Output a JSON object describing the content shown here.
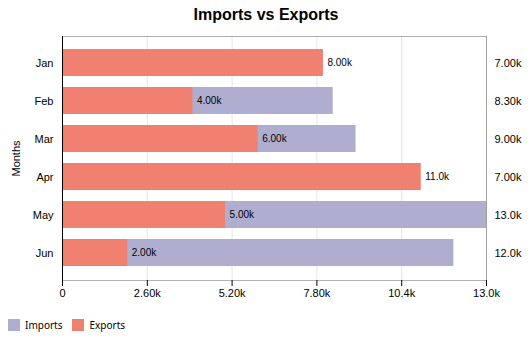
{
  "chart_data": {
    "type": "bar",
    "orientation": "horizontal",
    "title": "Imports vs Exports",
    "ylabel": "Months",
    "categories": [
      "Jan",
      "Feb",
      "Mar",
      "Apr",
      "May",
      "Jun"
    ],
    "series": [
      {
        "name": "Imports",
        "color": "#b0aed0",
        "values": [
          7000,
          8300,
          9000,
          7000,
          13000,
          12000
        ],
        "value_labels": [
          "7.00k",
          "8.30k",
          "9.00k",
          "7.00k",
          "13.0k",
          "12.0k"
        ]
      },
      {
        "name": "Exports",
        "color": "#f08070",
        "values": [
          8000,
          4000,
          6000,
          11000,
          5000,
          2000
        ],
        "value_labels": [
          "8.00k",
          "4.00k",
          "6.00k",
          "11.0k",
          "5.00k",
          "2.00k"
        ]
      }
    ],
    "xlim": [
      0,
      13000
    ],
    "xticks": [
      {
        "value": 0,
        "label": "0"
      },
      {
        "value": 2600,
        "label": "2.60k"
      },
      {
        "value": 5200,
        "label": "5.20k"
      },
      {
        "value": 7800,
        "label": "7.80k"
      },
      {
        "value": 10400,
        "label": "10.4k"
      },
      {
        "value": 13000,
        "label": "13.0k"
      }
    ],
    "grid": true,
    "legend": "lower left",
    "data_labels": true
  }
}
